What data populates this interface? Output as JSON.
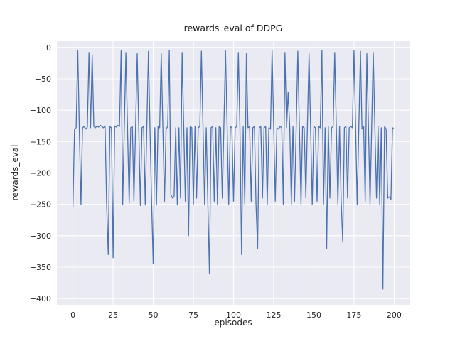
{
  "figure": {
    "title": "rewards_eval of DDPG",
    "xlabel": "episodes",
    "ylabel": "rewards_eval"
  },
  "chart_data": {
    "type": "line",
    "title": "rewards_eval of DDPG",
    "xlabel": "episodes",
    "ylabel": "rewards_eval",
    "legend": false,
    "grid": true,
    "line_color": "#4c72b0",
    "plot_bg": "#eaeaf2",
    "grid_color": "#ffffff",
    "xlim": [
      -10,
      210
    ],
    "ylim": [
      -410,
      10
    ],
    "xticks": [
      0,
      25,
      50,
      75,
      100,
      125,
      150,
      175,
      200
    ],
    "yticks": [
      0,
      -50,
      -100,
      -150,
      -200,
      -250,
      -300,
      -350,
      -400
    ],
    "x_start": 0,
    "x_step": 1,
    "values": [
      -255,
      -130,
      -128,
      -5,
      -132,
      -250,
      -128,
      -126,
      -130,
      -127,
      -8,
      -128,
      -12,
      -126,
      -128,
      -125,
      -127,
      -124,
      -126,
      -128,
      -125,
      -250,
      -330,
      -126,
      -128,
      -335,
      -125,
      -127,
      -124,
      -126,
      -5,
      -250,
      -126,
      -8,
      -130,
      -248,
      -128,
      -126,
      -245,
      -128,
      -10,
      -130,
      -252,
      -128,
      -126,
      -250,
      -128,
      -6,
      -130,
      -248,
      -345,
      -128,
      -250,
      -126,
      -128,
      -10,
      -128,
      -245,
      -130,
      -126,
      -5,
      -235,
      -240,
      -238,
      -128,
      -250,
      -128,
      -240,
      -8,
      -130,
      -245,
      -128,
      -300,
      -126,
      -128,
      -250,
      -126,
      -240,
      -128,
      -126,
      -6,
      -130,
      -250,
      -128,
      -250,
      -360,
      -128,
      -126,
      -245,
      -128,
      -250,
      -126,
      -128,
      -240,
      -126,
      -5,
      -128,
      -250,
      -126,
      -128,
      -245,
      -128,
      -126,
      -8,
      -128,
      -330,
      -126,
      -250,
      -10,
      -128,
      -126,
      -245,
      -128,
      -126,
      -250,
      -320,
      -128,
      -126,
      -240,
      -128,
      -126,
      -250,
      -128,
      -130,
      -5,
      -126,
      -245,
      -128,
      -130,
      -126,
      -128,
      -250,
      -8,
      -128,
      -72,
      -128,
      -250,
      -126,
      -245,
      -128,
      -6,
      -128,
      -250,
      -126,
      -128,
      -240,
      -126,
      -10,
      -128,
      -250,
      -126,
      -128,
      -245,
      -126,
      -128,
      -5,
      -250,
      -128,
      -320,
      -126,
      -240,
      -128,
      -126,
      -8,
      -128,
      -250,
      -126,
      -245,
      -310,
      -128,
      -126,
      -240,
      -128,
      -126,
      -128,
      -5,
      -126,
      -250,
      -128,
      -6,
      -130,
      -126,
      -245,
      -10,
      -128,
      -250,
      -126,
      -8,
      -128,
      -240,
      -126,
      -250,
      -128,
      -385,
      -126,
      -130,
      -240,
      -238,
      -242,
      -128,
      -130
    ]
  }
}
